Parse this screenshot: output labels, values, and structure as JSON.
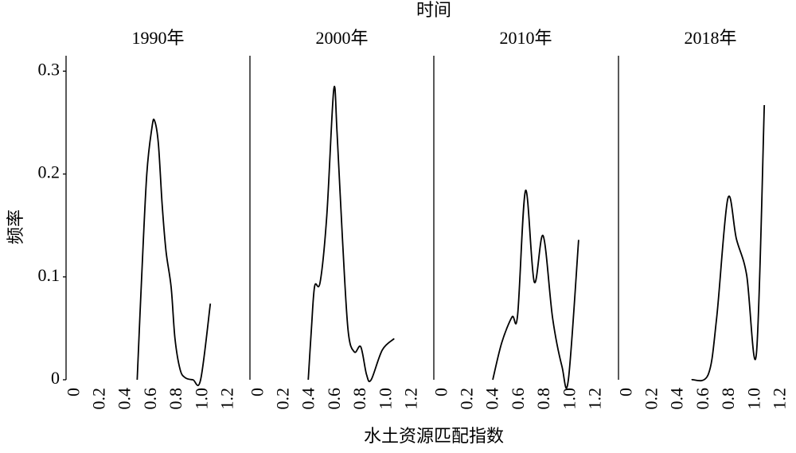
{
  "figure": {
    "title": "时间",
    "xlabel": "水土资源匹配指数",
    "ylabel": "频率"
  },
  "chart_data": [
    {
      "type": "line",
      "title": "1990年",
      "x": [
        0.485,
        0.52,
        0.56,
        0.6,
        0.62,
        0.65,
        0.68,
        0.71,
        0.75,
        0.78,
        0.82,
        0.86,
        0.92,
        0.98,
        1.056
      ],
      "values": [
        0,
        0.1,
        0.2,
        0.245,
        0.252,
        0.23,
        0.17,
        0.125,
        0.09,
        0.04,
        0.01,
        0.002,
        0,
        0,
        0.074
      ],
      "xlim": [
        -0.07,
        1.365
      ],
      "ylim": [
        0,
        0.315
      ],
      "xticks": [
        0,
        0.2,
        0.4,
        0.6,
        0.8,
        {
          "value": 1,
          "label": "1.0"
        },
        1.2
      ],
      "yticks": [
        0,
        0.1,
        0.2,
        0.3
      ]
    },
    {
      "type": "line",
      "title": "2000年",
      "x": [
        0.385,
        0.41,
        0.435,
        0.478,
        0.53,
        0.584,
        0.61,
        0.652,
        0.696,
        0.745,
        0.795,
        0.84,
        0.876,
        0.963,
        1.056
      ],
      "values": [
        0,
        0.05,
        0.091,
        0.095,
        0.16,
        0.282,
        0.24,
        0.137,
        0.048,
        0.027,
        0.032,
        0.005,
        0,
        0.029,
        0.04
      ],
      "xlim": [
        -0.07,
        1.365
      ],
      "ylim": [
        0,
        0.315
      ],
      "xticks": [
        0,
        0.2,
        0.4,
        0.6,
        0.8,
        {
          "value": 1,
          "label": "1.0"
        },
        1.2
      ]
    },
    {
      "type": "line",
      "title": "2010年",
      "x": [
        0.39,
        0.46,
        0.54,
        0.584,
        0.646,
        0.714,
        0.783,
        0.857,
        0.93,
        0.98,
        1.06
      ],
      "values": [
        0,
        0.036,
        0.061,
        0.063,
        0.184,
        0.095,
        0.14,
        0.06,
        0.013,
        0,
        0.136
      ],
      "xlim": [
        -0.07,
        1.365
      ],
      "ylim": [
        0,
        0.315
      ],
      "xticks": [
        0,
        0.2,
        0.4,
        0.6,
        0.8,
        {
          "value": 1,
          "label": "1.0"
        },
        1.2
      ]
    },
    {
      "type": "line",
      "title": "2018年",
      "x": [
        0.5,
        0.63,
        0.696,
        0.783,
        0.85,
        0.93,
        1.006,
        1.068
      ],
      "values": [
        0,
        0.005,
        0.06,
        0.176,
        0.137,
        0.102,
        0.025,
        0.267
      ],
      "xlim": [
        -0.07,
        1.365
      ],
      "ylim": [
        0,
        0.315
      ],
      "xticks": [
        0,
        0.2,
        0.4,
        0.6,
        0.8,
        {
          "value": 1,
          "label": "1.0"
        },
        1.2
      ]
    }
  ]
}
